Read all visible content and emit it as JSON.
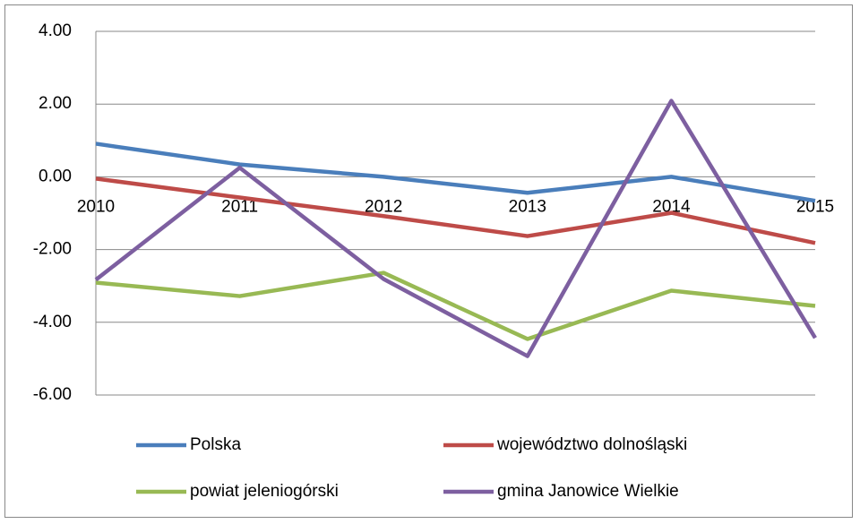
{
  "chart_data": {
    "type": "line",
    "categories": [
      "2010",
      "2011",
      "2012",
      "2013",
      "2014",
      "2015"
    ],
    "series": [
      {
        "name": "Polska",
        "color": "#4a7ebb",
        "values": [
          0.91,
          0.34,
          0.0,
          -0.44,
          0.0,
          -0.66
        ]
      },
      {
        "name": "województwo dolnośląski",
        "color": "#be4b48",
        "values": [
          -0.05,
          -0.57,
          -1.08,
          -1.63,
          -0.99,
          -1.82
        ]
      },
      {
        "name": "powiat jeleniogórski",
        "color": "#98b954",
        "values": [
          -2.91,
          -3.28,
          -2.64,
          -4.46,
          -3.13,
          -3.55
        ]
      },
      {
        "name": "gmina Janowice Wielkie",
        "color": "#7d5fa0",
        "values": [
          -2.83,
          0.25,
          -2.81,
          -4.93,
          2.09,
          -4.43
        ]
      }
    ],
    "ylim": [
      -6,
      4
    ],
    "yticks": [
      {
        "value": -6,
        "label": "-6.00"
      },
      {
        "value": -4,
        "label": "-4.00"
      },
      {
        "value": -2,
        "label": "-2.00"
      },
      {
        "value": 0,
        "label": "0.00"
      },
      {
        "value": 2,
        "label": "2.00"
      },
      {
        "value": 4,
        "label": "4.00"
      }
    ],
    "grid": true
  }
}
